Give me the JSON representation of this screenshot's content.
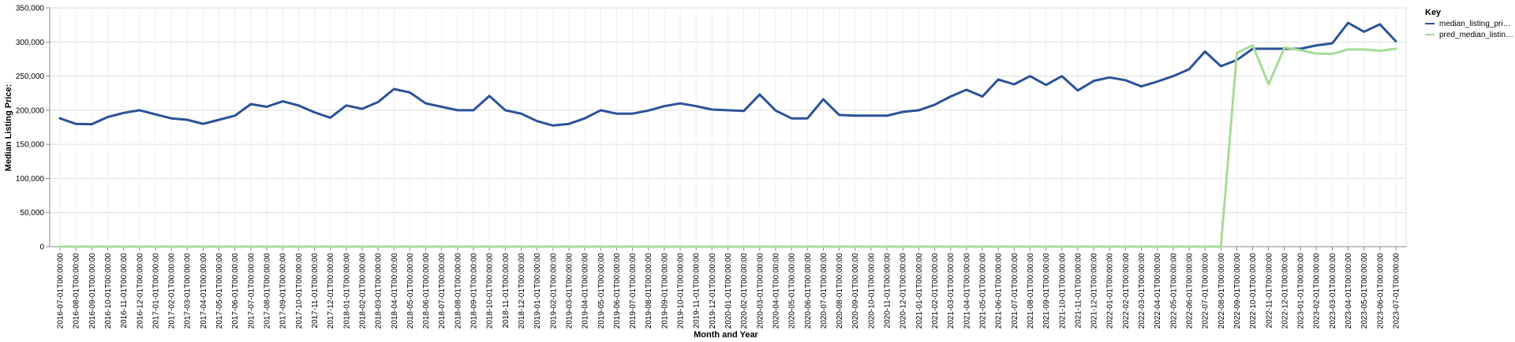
{
  "chart_data": {
    "type": "line",
    "xlabel": "Month and Year",
    "ylabel": "Median Listing Price:",
    "ylim": [
      0,
      350000
    ],
    "y_ticks": [
      "0",
      "50,000",
      "100,000",
      "150,000",
      "200,000",
      "250,000",
      "300,000",
      "350,000"
    ],
    "grid": true,
    "legend": {
      "title": "Key",
      "placement": "right"
    },
    "x": [
      "2016-07-01T00:00:00",
      "2016-08-01T00:00:00",
      "2016-09-01T00:00:00",
      "2016-10-01T00:00:00",
      "2016-11-01T00:00:00",
      "2016-12-01T00:00:00",
      "2017-01-01T00:00:00",
      "2017-02-01T00:00:00",
      "2017-03-01T00:00:00",
      "2017-04-01T00:00:00",
      "2017-05-01T00:00:00",
      "2017-06-01T00:00:00",
      "2017-07-01T00:00:00",
      "2017-08-01T00:00:00",
      "2017-09-01T00:00:00",
      "2017-10-01T00:00:00",
      "2017-11-01T00:00:00",
      "2017-12-01T00:00:00",
      "2018-01-01T00:00:00",
      "2018-02-01T00:00:00",
      "2018-03-01T00:00:00",
      "2018-04-01T00:00:00",
      "2018-05-01T00:00:00",
      "2018-06-01T00:00:00",
      "2018-07-01T00:00:00",
      "2018-08-01T00:00:00",
      "2018-09-01T00:00:00",
      "2018-10-01T00:00:00",
      "2018-11-01T00:00:00",
      "2018-12-01T00:00:00",
      "2019-01-01T00:00:00",
      "2019-02-01T00:00:00",
      "2019-03-01T00:00:00",
      "2019-04-01T00:00:00",
      "2019-05-01T00:00:00",
      "2019-06-01T00:00:00",
      "2019-07-01T00:00:00",
      "2019-08-01T00:00:00",
      "2019-09-01T00:00:00",
      "2019-10-01T00:00:00",
      "2019-11-01T00:00:00",
      "2019-12-01T00:00:00",
      "2020-01-01T00:00:00",
      "2020-02-01T00:00:00",
      "2020-03-01T00:00:00",
      "2020-04-01T00:00:00",
      "2020-05-01T00:00:00",
      "2020-06-01T00:00:00",
      "2020-07-01T00:00:00",
      "2020-08-01T00:00:00",
      "2020-09-01T00:00:00",
      "2020-10-01T00:00:00",
      "2020-11-01T00:00:00",
      "2020-12-01T00:00:00",
      "2021-01-01T00:00:00",
      "2021-02-01T00:00:00",
      "2021-03-01T00:00:00",
      "2021-04-01T00:00:00",
      "2021-05-01T00:00:00",
      "2021-06-01T00:00:00",
      "2021-07-01T00:00:00",
      "2021-08-01T00:00:00",
      "2021-09-01T00:00:00",
      "2021-10-01T00:00:00",
      "2021-11-01T00:00:00",
      "2021-12-01T00:00:00",
      "2022-01-01T00:00:00",
      "2022-02-01T00:00:00",
      "2022-03-01T00:00:00",
      "2022-04-01T00:00:00",
      "2022-05-01T00:00:00",
      "2022-06-01T00:00:00",
      "2022-07-01T00:00:00",
      "2022-08-01T00:00:00",
      "2022-09-01T00:00:00",
      "2022-10-01T00:00:00",
      "2022-11-01T00:00:00",
      "2022-12-01T00:00:00",
      "2023-01-01T00:00:00",
      "2023-02-01T00:00:00",
      "2023-03-01T00:00:00",
      "2023-04-01T00:00:00",
      "2023-05-01T00:00:00",
      "2023-06-01T00:00:00",
      "2023-07-01T00:00:00"
    ],
    "series": [
      {
        "name": "median_listing_pri…",
        "color": "#2a5298",
        "values": [
          188000,
          180000,
          179500,
          190000,
          196000,
          200000,
          194000,
          188000,
          186000,
          180000,
          186000,
          192000,
          209000,
          205000,
          213000,
          207000,
          197000,
          189000,
          207000,
          202000,
          212000,
          231000,
          226000,
          210000,
          205000,
          200000,
          200000,
          221000,
          200000,
          195000,
          184000,
          177500,
          180000,
          188000,
          200000,
          195000,
          195000,
          199500,
          206000,
          210000,
          206000,
          201000,
          200000,
          199000,
          223000,
          199500,
          188000,
          188000,
          216000,
          193000,
          192000,
          192000,
          192000,
          197500,
          200000,
          208000,
          220000,
          230000,
          220000,
          245000,
          238000,
          250000,
          237000,
          250000,
          229000,
          243000,
          248000,
          244000,
          235000,
          242000,
          250000,
          260000,
          286000,
          264500,
          273500,
          290000,
          290000,
          290000,
          290000,
          295000,
          298000,
          328000,
          315000,
          326000,
          301000
        ]
      },
      {
        "name": "pred_median_listin…",
        "color": "#a6dc96",
        "values": [
          0,
          0,
          0,
          0,
          0,
          0,
          0,
          0,
          0,
          0,
          0,
          0,
          0,
          0,
          0,
          0,
          0,
          0,
          0,
          0,
          0,
          0,
          0,
          0,
          0,
          0,
          0,
          0,
          0,
          0,
          0,
          0,
          0,
          0,
          0,
          0,
          0,
          0,
          0,
          0,
          0,
          0,
          0,
          0,
          0,
          0,
          0,
          0,
          0,
          0,
          0,
          0,
          0,
          0,
          0,
          0,
          0,
          0,
          0,
          0,
          0,
          0,
          0,
          0,
          0,
          0,
          0,
          0,
          0,
          0,
          0,
          0,
          0,
          0,
          284000,
          295000,
          238000,
          292000,
          288000,
          283000,
          282500,
          289000,
          289000,
          287000,
          290000
        ]
      }
    ]
  }
}
